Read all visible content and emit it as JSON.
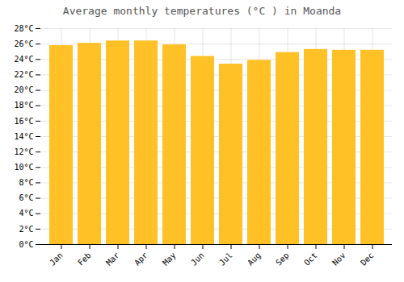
{
  "chart_data": {
    "type": "bar",
    "title": "Average monthly temperatures (°C ) in Moanda",
    "categories": [
      "Jan",
      "Feb",
      "Mar",
      "Apr",
      "May",
      "Jun",
      "Jul",
      "Aug",
      "Sep",
      "Oct",
      "Nov",
      "Dec"
    ],
    "values": [
      25.8,
      26.1,
      26.4,
      26.4,
      25.9,
      24.4,
      23.4,
      23.9,
      24.9,
      25.3,
      25.2,
      25.2
    ],
    "color": "#FFC125",
    "ylim": [
      0,
      28
    ],
    "yticks": [
      {
        "value": 0,
        "label": "0°C"
      },
      {
        "value": 2,
        "label": "2°C"
      },
      {
        "value": 4,
        "label": "4°C"
      },
      {
        "value": 6,
        "label": "6°C"
      },
      {
        "value": 8,
        "label": "8°C"
      },
      {
        "value": 10,
        "label": "10°C"
      },
      {
        "value": 12,
        "label": "12°C"
      },
      {
        "value": 14,
        "label": "14°C"
      },
      {
        "value": 16,
        "label": "16°C"
      },
      {
        "value": 18,
        "label": "18°C"
      },
      {
        "value": 20,
        "label": "20°C"
      },
      {
        "value": 22,
        "label": "22°C"
      },
      {
        "value": 24,
        "label": "24°C"
      },
      {
        "value": 26,
        "label": "26°C"
      },
      {
        "value": 28,
        "label": "28°C"
      }
    ],
    "grid": true
  }
}
